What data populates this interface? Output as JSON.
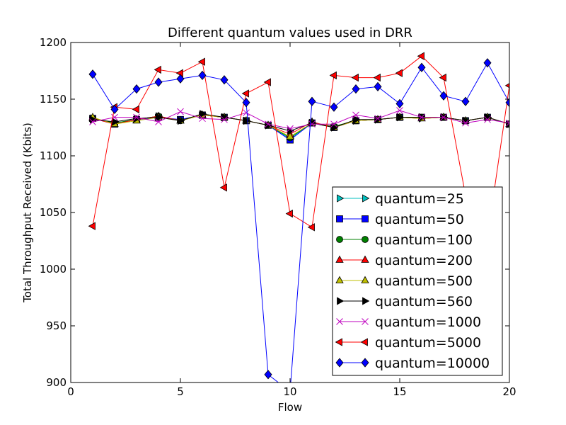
{
  "chart_data": {
    "type": "line",
    "title": "Different quantum values used in DRR",
    "xlabel": "Flow",
    "ylabel": "Total Throughput Received (Kbits)",
    "xlim": [
      0,
      20
    ],
    "ylim": [
      900,
      1200
    ],
    "xticks": [
      "0",
      "5",
      "10",
      "15",
      "20"
    ],
    "yticks": [
      "900",
      "950",
      "1000",
      "1050",
      "1100",
      "1150",
      "1200"
    ],
    "grid": false,
    "legend_position": "lower-right",
    "x": [
      1,
      2,
      3,
      4,
      5,
      6,
      7,
      8,
      9,
      10,
      11,
      12,
      13,
      14,
      15,
      16,
      17,
      18,
      19,
      20
    ],
    "series": [
      {
        "name": "quantum=25",
        "color": "#00bfbf",
        "marker": "tri-right",
        "values": [
          1133,
          1129,
          1132,
          1135,
          1131,
          1136,
          1134,
          1131,
          1127,
          1115,
          1129,
          1125,
          1131,
          1132,
          1134,
          1133,
          1134,
          1131,
          1134,
          1128
        ]
      },
      {
        "name": "quantum=50",
        "color": "#0000ff",
        "marker": "square",
        "values": [
          1133,
          1128,
          1132,
          1134,
          1132,
          1136,
          1134,
          1131,
          1127,
          1114,
          1129,
          1125,
          1131,
          1132,
          1134,
          1134,
          1134,
          1131,
          1134,
          1128
        ]
      },
      {
        "name": "quantum=100",
        "color": "#008000",
        "marker": "circle",
        "values": [
          1133,
          1129,
          1132,
          1135,
          1131,
          1136,
          1134,
          1131,
          1127,
          1116,
          1129,
          1126,
          1131,
          1132,
          1134,
          1134,
          1134,
          1131,
          1134,
          1128
        ]
      },
      {
        "name": "quantum=200",
        "color": "#ff0000",
        "marker": "triangle-up",
        "values": [
          1133,
          1128,
          1132,
          1135,
          1131,
          1136,
          1134,
          1131,
          1127,
          1119,
          1130,
          1125,
          1131,
          1132,
          1134,
          1133,
          1134,
          1131,
          1134,
          1128
        ]
      },
      {
        "name": "quantum=500",
        "color": "#bfbf00",
        "marker": "triangle-up",
        "values": [
          1134,
          1128,
          1131,
          1134,
          1131,
          1136,
          1134,
          1131,
          1127,
          1117,
          1129,
          1125,
          1131,
          1132,
          1134,
          1133,
          1134,
          1131,
          1134,
          1128
        ]
      },
      {
        "name": "quantum=560",
        "color": "#000000",
        "marker": "tri-right",
        "values": [
          1132,
          1130,
          1133,
          1134,
          1131,
          1137,
          1134,
          1131,
          1127,
          1122,
          1129,
          1125,
          1132,
          1132,
          1134,
          1134,
          1134,
          1131,
          1134,
          1128
        ]
      },
      {
        "name": "quantum=1000",
        "color": "#bf00bf",
        "marker": "x",
        "values": [
          1130,
          1134,
          1134,
          1130,
          1139,
          1133,
          1132,
          1138,
          1128,
          1124,
          1128,
          1128,
          1136,
          1133,
          1140,
          1134,
          1134,
          1129,
          1132,
          1129
        ]
      },
      {
        "name": "quantum=5000",
        "color": "#ff0000",
        "marker": "tri-left",
        "values": [
          1038,
          1143,
          1141,
          1176,
          1173,
          1183,
          1072,
          1155,
          1165,
          1049,
          1037,
          1171,
          1169,
          1169,
          1173,
          1188,
          1169,
          1065,
          1028,
          1162
        ]
      },
      {
        "name": "quantum=10000",
        "color": "#0000ff",
        "marker": "diamond",
        "values": [
          1172,
          1141,
          1159,
          1165,
          1168,
          1171,
          1167,
          1147,
          907,
          892,
          1148,
          1143,
          1159,
          1161,
          1146,
          1178,
          1153,
          1148,
          1182,
          1147
        ]
      }
    ]
  }
}
